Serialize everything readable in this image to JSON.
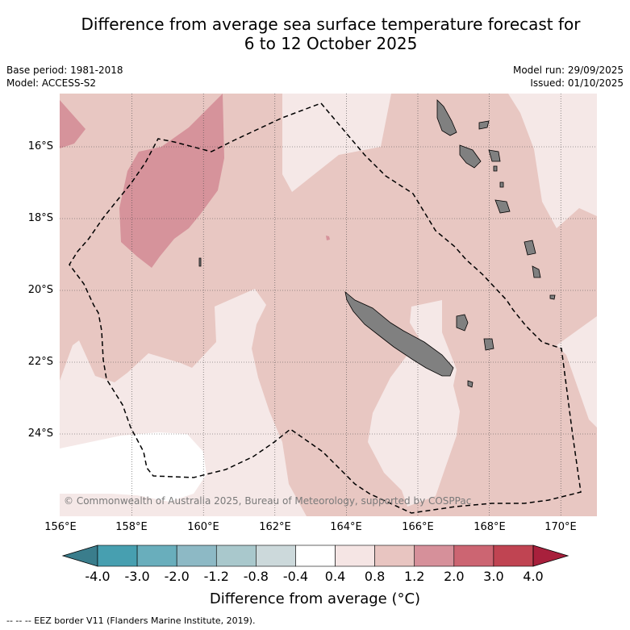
{
  "title_line1": "Difference from average sea surface temperature forecast for",
  "title_line2": "6 to 12 October 2025",
  "meta_left": {
    "base_period": "Base period: 1981-2018",
    "model": "Model: ACCESS-S2"
  },
  "meta_right": {
    "model_run": "Model run: 29/09/2025",
    "issued": "Issued: 01/10/2025"
  },
  "lat_labels": [
    "16°S",
    "18°S",
    "20°S",
    "22°S",
    "24°S"
  ],
  "lon_labels": [
    "156°E",
    "158°E",
    "160°E",
    "162°E",
    "164°E",
    "166°E",
    "168°E",
    "170°E"
  ],
  "copyright": "© Commonwealth of Australia 2025, Bureau of Meteorology, supported by COSPPac",
  "colorbar": {
    "title": "Difference from average (°C)",
    "ticks": [
      "-4.0",
      "-3.0",
      "-2.0",
      "-1.2",
      "-0.8",
      "-0.4",
      "0.4",
      "0.8",
      "1.2",
      "2.0",
      "3.0",
      "4.0"
    ],
    "colors": [
      "#3a7d8c",
      "#479fb0",
      "#69aebc",
      "#8db9c5",
      "#a9c8cc",
      "#ccd9db",
      "#ffffff",
      "#f5e5e4",
      "#e8c5c1",
      "#d6909a",
      "#cc6572",
      "#c04452",
      "#a8203c"
    ]
  },
  "footnote": "--  --  -- EEZ border V11 (Flanders Marine Institute, 2019).",
  "colors": {
    "land": "#808080",
    "anom_low": "#f5e8e7",
    "anom_mid": "#e8c7c2",
    "anom_high": "#d6939b",
    "white": "#ffffff"
  }
}
